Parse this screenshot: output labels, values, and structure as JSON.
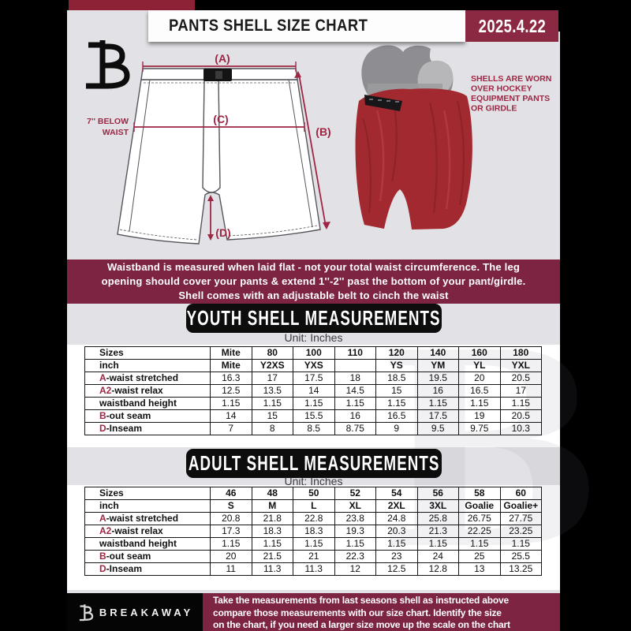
{
  "header": {
    "title": "PANTS SHELL SIZE CHART",
    "date": "2025.4.22"
  },
  "diagram": {
    "label_a": "(A)",
    "label_b": "(B)",
    "label_c": "(C)",
    "label_d": "(D)",
    "note_line1": "7'' BELOW",
    "note_line2": "WAIST"
  },
  "photo": {
    "caption_line1": "SHELLS ARE WORN",
    "caption_line2": "OVER HOCKEY",
    "caption_line3": "EQUIPMENT PANTS",
    "caption_line4": "OR GIRDLE"
  },
  "info_banner": {
    "line1": "Waistband is measured when laid flat - not your total waist circumference. The leg",
    "line2": "opening should cover your pants & extend 1''-2'' past the bottom of your pant/girdle.",
    "line3": "Shell comes with an adjustable belt to cinch the waist"
  },
  "youth": {
    "banner": "YOUTH SHELL MEASUREMENTS",
    "unit": "Unit: Inches",
    "table": {
      "rows": [
        {
          "header": true,
          "prefix": "",
          "label": "Sizes",
          "values": [
            "Mite",
            "80",
            "100",
            "110",
            "120",
            "140",
            "160",
            "180"
          ]
        },
        {
          "header": true,
          "prefix": "",
          "label": "inch",
          "values": [
            "Mite",
            "Y2XS",
            "YXS",
            "",
            "YS",
            "YM",
            "YL",
            "YXL"
          ]
        },
        {
          "prefix": "A",
          "label": "-waist stretched",
          "values": [
            "16.3",
            "17",
            "17.5",
            "18",
            "18.5",
            "19.5",
            "20",
            "20.5"
          ]
        },
        {
          "prefix": "A2",
          "label": "-waist relax",
          "values": [
            "12.5",
            "13.5",
            "14",
            "14.5",
            "15",
            "16",
            "16.5",
            "17"
          ]
        },
        {
          "prefix": "",
          "label": "waistband height",
          "values": [
            "1.15",
            "1.15",
            "1.15",
            "1.15",
            "1.15",
            "1.15",
            "1.15",
            "1.15"
          ]
        },
        {
          "prefix": "B",
          "label": "-out seam",
          "values": [
            "14",
            "15",
            "15.5",
            "16",
            "16.5",
            "17.5",
            "19",
            "20.5"
          ]
        },
        {
          "prefix": "D",
          "label": "-Inseam",
          "values": [
            "7",
            "8",
            "8.5",
            "8.75",
            "9",
            "9.5",
            "9.75",
            "10.3"
          ]
        }
      ]
    }
  },
  "adult": {
    "banner": "ADULT SHELL MEASUREMENTS",
    "unit": "Unit: Inches",
    "table": {
      "rows": [
        {
          "header": true,
          "prefix": "",
          "label": "Sizes",
          "values": [
            "46",
            "48",
            "50",
            "52",
            "54",
            "56",
            "58",
            "60"
          ]
        },
        {
          "header": true,
          "prefix": "",
          "label": "inch",
          "values": [
            "S",
            "M",
            "L",
            "XL",
            "2XL",
            "3XL",
            "Goalie",
            "Goalie+"
          ]
        },
        {
          "prefix": "A",
          "label": "-waist stretched",
          "values": [
            "20.8",
            "21.8",
            "22.8",
            "23.8",
            "24.8",
            "25.8",
            "26.75",
            "27.75"
          ]
        },
        {
          "prefix": "A2",
          "label": "-waist relax",
          "values": [
            "17.3",
            "18.3",
            "18.3",
            "19.3",
            "20.3",
            "21.3",
            "22.25",
            "23.25"
          ]
        },
        {
          "prefix": "",
          "label": "waistband height",
          "values": [
            "1.15",
            "1.15",
            "1.15",
            "1.15",
            "1.15",
            "1.15",
            "1.15",
            "1.15"
          ]
        },
        {
          "prefix": "B",
          "label": "-out seam",
          "values": [
            "20",
            "21.5",
            "21",
            "22.3",
            "23",
            "24",
            "25",
            "25.5"
          ]
        },
        {
          "prefix": "D",
          "label": "-Inseam",
          "values": [
            "11",
            "11.3",
            "11.3",
            "12",
            "12.5",
            "12.8",
            "13",
            "13.25"
          ]
        }
      ]
    }
  },
  "footer": {
    "brand": "BREAKAWAY",
    "line1": "Take the measurements from last seasons shell as instructed above",
    "line2": "compare those measurements with our size chart. Identify the size",
    "line3": "on the chart, if you need a larger size move up the scale on the chart"
  },
  "colors": {
    "page_bg": "#000000",
    "content_bg": "#e2e2e6",
    "maroon_banner": "#7d2443",
    "maroon_accent": "#9e2643",
    "date_box": "#8b2942",
    "top_strip": "#8d2236",
    "banner_black": "#0d0d0d",
    "shell_red": "#a1292f"
  }
}
